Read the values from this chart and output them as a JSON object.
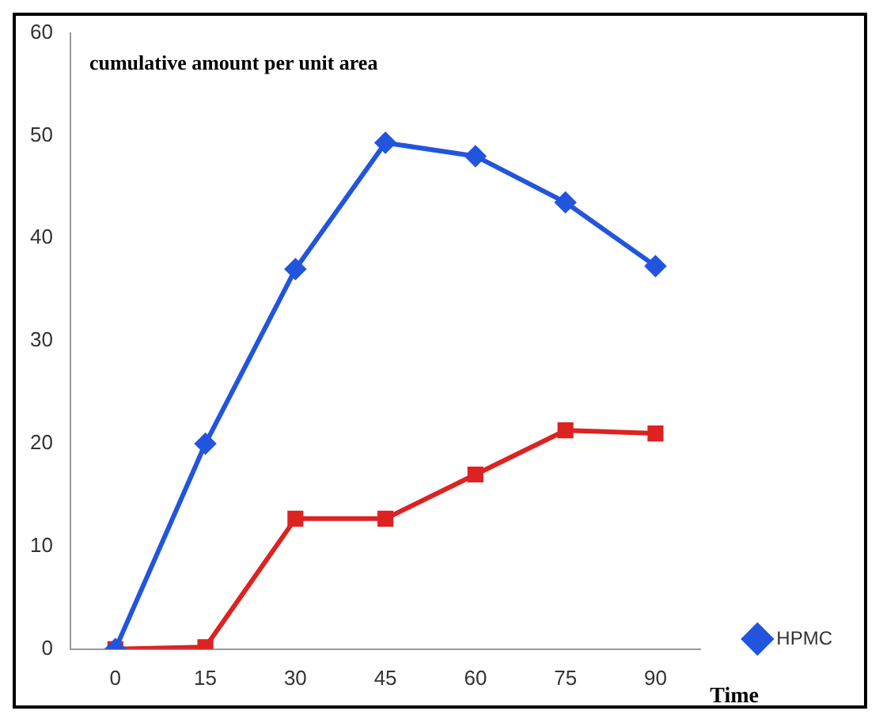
{
  "chart_data": {
    "type": "line",
    "ylabel": "cumulative amount per unit area",
    "xlabel": "Time",
    "categories": [
      "0",
      "15",
      "30",
      "45",
      "60",
      "75",
      "90"
    ],
    "series": [
      {
        "name": "HPMC",
        "color": "#2255dd",
        "marker": "diamond",
        "values": [
          0,
          20,
          37,
          49.3,
          48,
          43.5,
          37.3
        ]
      },
      {
        "color": "#dd2222",
        "marker": "square",
        "values": [
          0,
          0.2,
          12.7,
          12.7,
          17,
          21.3,
          21
        ]
      }
    ],
    "ylim": [
      0,
      60
    ],
    "yticks": [
      0,
      10,
      20,
      30,
      40,
      50,
      60
    ],
    "grid": false,
    "legend": "bottom right"
  }
}
